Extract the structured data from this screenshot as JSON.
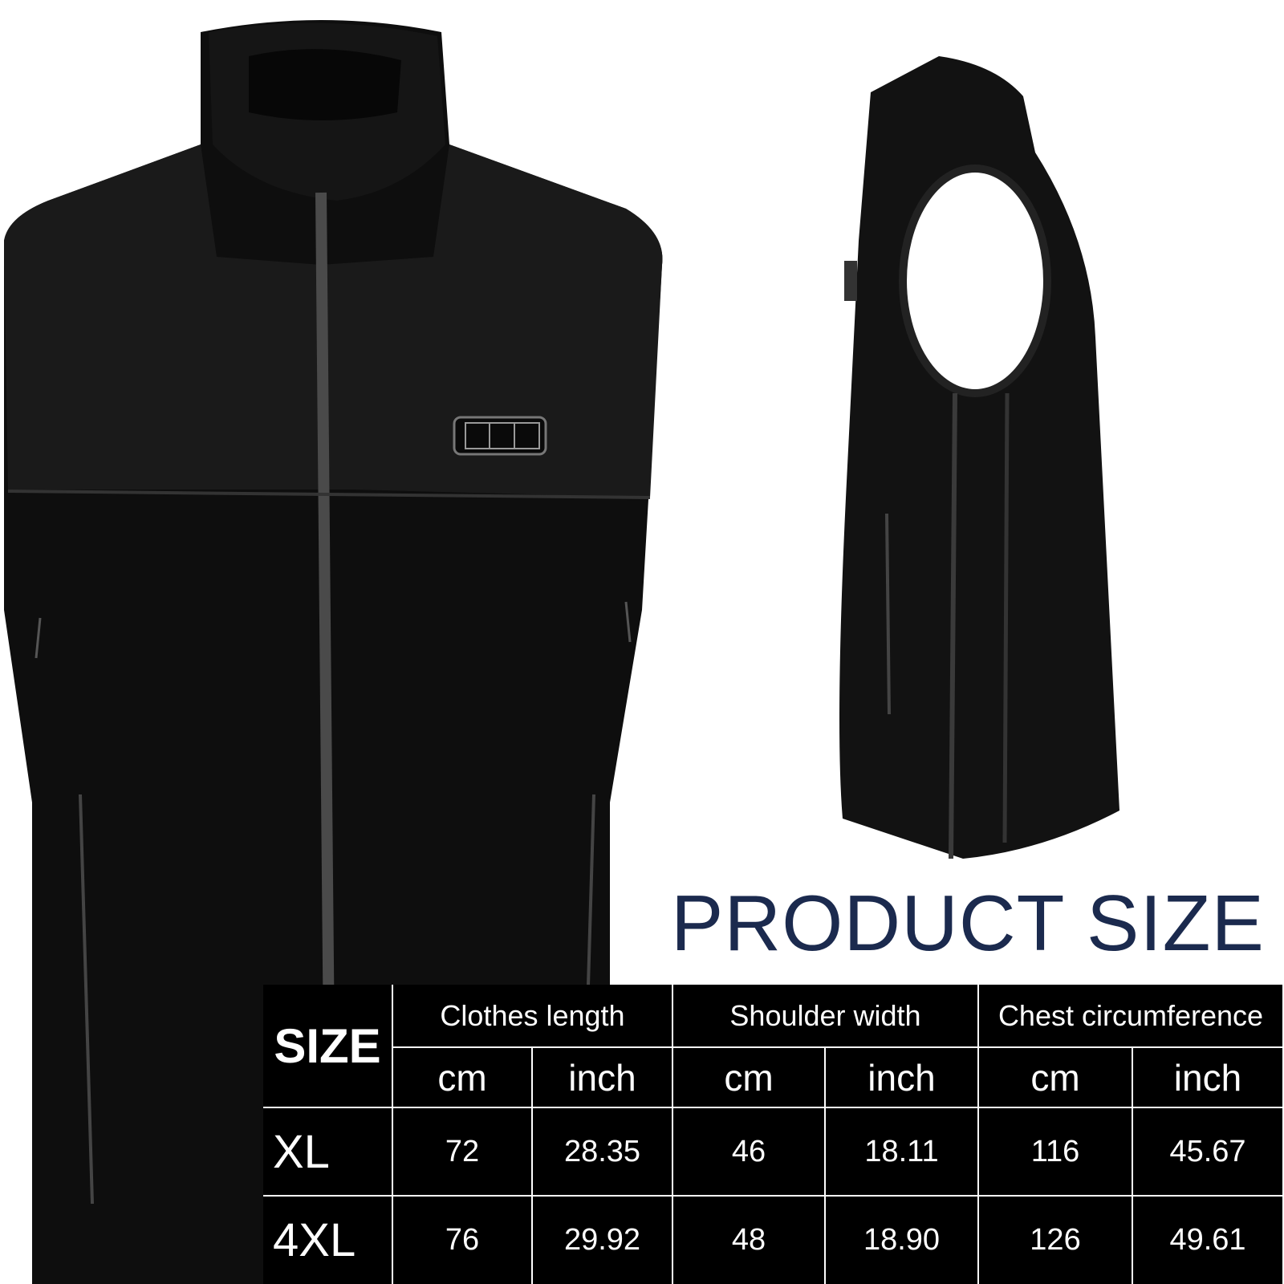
{
  "title": "PRODUCT SIZE",
  "colors": {
    "title": "#1b2a4e",
    "table_bg": "#000000",
    "table_text": "#ffffff",
    "vest": "#0d0d0d"
  },
  "images": {
    "front_vest": "black-fleece-vest-front",
    "side_vest": "black-fleece-vest-side",
    "control_badge": "heating-control-button-icon"
  },
  "table": {
    "size_header": "SIZE",
    "groups": [
      "Clothes length",
      "Shoulder width",
      "Chest circumference"
    ],
    "units": [
      "cm",
      "inch",
      "cm",
      "inch",
      "cm",
      "inch"
    ],
    "rows": [
      {
        "size": "XL",
        "values": [
          "72",
          "28.35",
          "46",
          "18.11",
          "116",
          "45.67"
        ]
      },
      {
        "size": "4XL",
        "values": [
          "76",
          "29.92",
          "48",
          "18.90",
          "126",
          "49.61"
        ]
      }
    ]
  }
}
